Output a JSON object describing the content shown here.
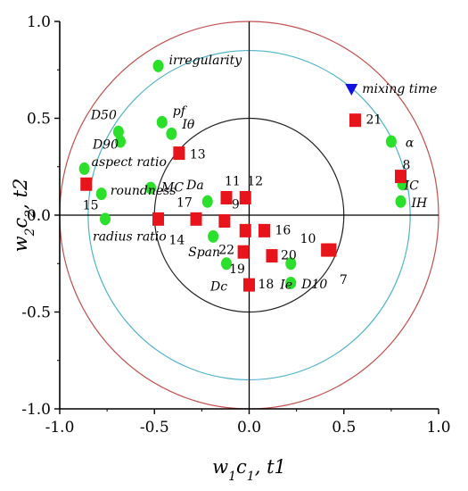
{
  "chart_data": {
    "type": "scatter",
    "xlabel": "w1c1, t1",
    "ylabel": "w2c2, t2",
    "xlim": [
      -1.0,
      1.0
    ],
    "ylim": [
      -1.0,
      1.0
    ],
    "x_ticks": [
      "-1.0",
      "-0.5",
      "0.0",
      "0.5",
      "1.0"
    ],
    "y_ticks": [
      "1.0",
      "0.5",
      "0.0",
      "-0.5",
      "-1.0"
    ],
    "circles": [
      {
        "r": 1.0,
        "color": "#c0504d"
      },
      {
        "r": 0.85,
        "color": "#4fb3c8"
      },
      {
        "r": 0.5,
        "color": "#222222"
      }
    ],
    "x_variables": [
      {
        "label": "irregularity",
        "x": -0.48,
        "y": 0.77
      },
      {
        "label": "pf",
        "x": -0.46,
        "y": 0.48
      },
      {
        "label": "D50",
        "x": -0.69,
        "y": 0.43
      },
      {
        "label": "D90",
        "x": -0.68,
        "y": 0.38
      },
      {
        "label": "Iθ",
        "x": -0.41,
        "y": 0.42
      },
      {
        "label": "aspect ratio",
        "x": -0.87,
        "y": 0.24
      },
      {
        "label": "MC",
        "x": -0.52,
        "y": 0.14
      },
      {
        "label": "roundness",
        "x": -0.78,
        "y": 0.11
      },
      {
        "label": "radius ratio",
        "x": -0.76,
        "y": -0.02
      },
      {
        "label": "Da",
        "x": -0.22,
        "y": 0.07
      },
      {
        "label": "Span",
        "x": -0.19,
        "y": -0.11
      },
      {
        "label": "Dc",
        "x": -0.12,
        "y": -0.25
      },
      {
        "label": "Ie",
        "x": 0.22,
        "y": -0.25
      },
      {
        "label": "D10",
        "x": 0.22,
        "y": -0.35
      },
      {
        "label": "α",
        "x": 0.75,
        "y": 0.38
      },
      {
        "label": "IC",
        "x": 0.81,
        "y": 0.16
      },
      {
        "label": "IH",
        "x": 0.8,
        "y": 0.07
      }
    ],
    "samples": [
      {
        "label": "7",
        "x": 0.43,
        "y": -0.18
      },
      {
        "label": "8",
        "x": 0.8,
        "y": 0.2
      },
      {
        "label": "9",
        "x": -0.13,
        "y": -0.03
      },
      {
        "label": "10",
        "x": 0.41,
        "y": -0.18
      },
      {
        "label": "11",
        "x": -0.12,
        "y": 0.09
      },
      {
        "label": "12",
        "x": -0.02,
        "y": 0.09
      },
      {
        "label": "13",
        "x": -0.37,
        "y": 0.32
      },
      {
        "label": "14",
        "x": -0.48,
        "y": -0.02
      },
      {
        "label": "15",
        "x": -0.86,
        "y": 0.16
      },
      {
        "label": "16",
        "x": 0.08,
        "y": -0.08
      },
      {
        "label": "17",
        "x": -0.28,
        "y": -0.02
      },
      {
        "label": "18",
        "x": 0.0,
        "y": -0.36
      },
      {
        "label": "19",
        "x": -0.03,
        "y": -0.19
      },
      {
        "label": "20",
        "x": 0.12,
        "y": -0.21
      },
      {
        "label": "21",
        "x": 0.56,
        "y": 0.49
      },
      {
        "label": "22",
        "x": -0.02,
        "y": -0.08
      }
    ],
    "y_variable": {
      "label": "mixing time",
      "x": 0.54,
      "y": 0.65
    }
  }
}
